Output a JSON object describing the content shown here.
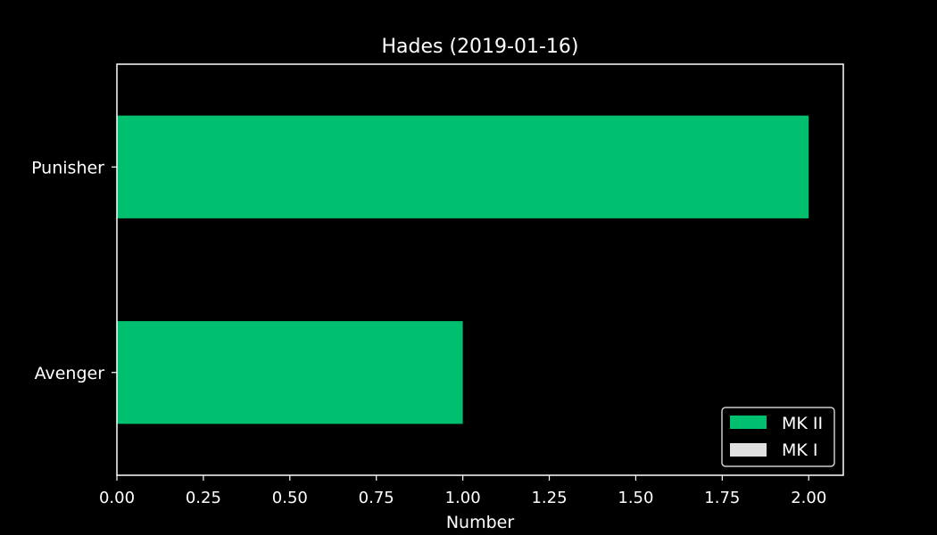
{
  "colors": {
    "background": "#000000",
    "axes": "#ffffff",
    "text": "#ffffff",
    "mk2": "#00bf6f",
    "mk1": "#e0e0e0"
  },
  "chart_data": {
    "type": "bar",
    "orientation": "horizontal",
    "stacked": true,
    "title": "Hades (2019-01-16)",
    "xlabel": "Number",
    "ylabel": "",
    "xlim": [
      0,
      2.1
    ],
    "xticks": [
      "0.00",
      "0.25",
      "0.50",
      "0.75",
      "1.00",
      "1.25",
      "1.50",
      "1.75",
      "2.00"
    ],
    "categories": [
      "Avenger",
      "Punisher"
    ],
    "series": [
      {
        "name": "MK II",
        "color": "#00bf6f",
        "values": [
          1,
          2
        ]
      },
      {
        "name": "MK I",
        "color": "#e0e0e0",
        "values": [
          0,
          0
        ]
      }
    ],
    "legend": {
      "position": "bottom-right",
      "entries": [
        "MK II",
        "MK I"
      ]
    },
    "grid": false
  }
}
